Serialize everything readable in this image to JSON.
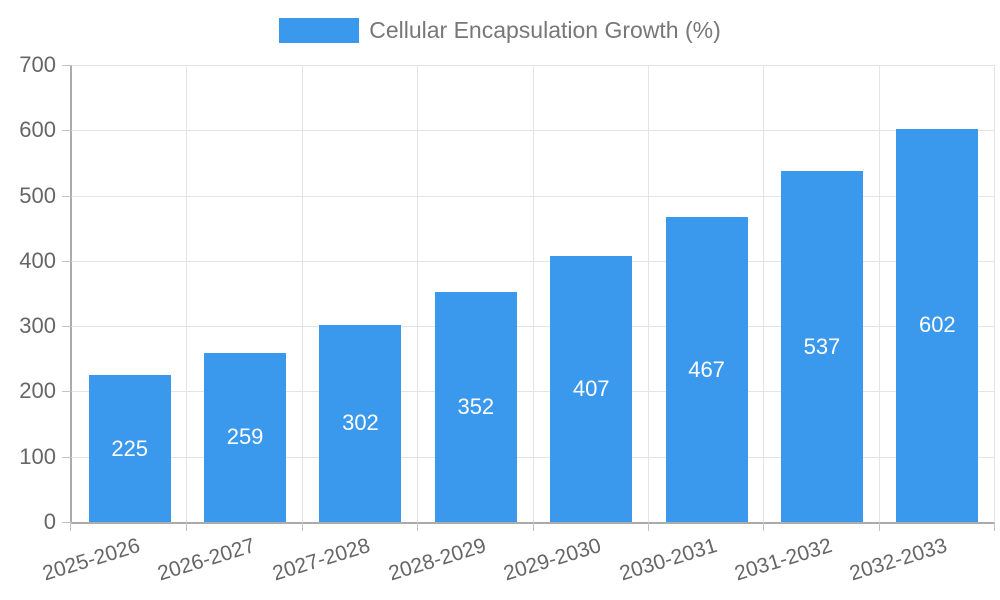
{
  "legend": {
    "label": "Cellular Encapsulation Growth (%)",
    "swatch_color": "#3a99ec"
  },
  "chart_data": {
    "type": "bar",
    "title": "Cellular Encapsulation Growth (%)",
    "categories": [
      "2025-2026",
      "2026-2027",
      "2027-2028",
      "2028-2029",
      "2029-2030",
      "2030-2031",
      "2031-2032",
      "2032-2033"
    ],
    "values": [
      225,
      259,
      302,
      352,
      407,
      467,
      537,
      602
    ],
    "xlabel": "",
    "ylabel": "",
    "ylim": [
      0,
      700
    ],
    "ytick_step": 100,
    "ytick_labels": [
      "0",
      "100",
      "200",
      "300",
      "400",
      "500",
      "600",
      "700"
    ],
    "grid": true,
    "legend_position": "top-center",
    "bar_color": "#3a99ec",
    "value_label_color": "#ffffff",
    "axis_text_color": "#666666",
    "gridline_color": "#e4e4e4",
    "axis_line_color": "#ababab",
    "background_color": "#ffffff"
  }
}
